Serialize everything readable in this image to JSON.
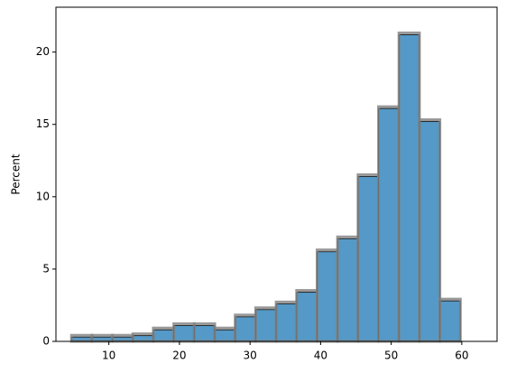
{
  "chart_data": {
    "type": "histogram",
    "y_label": "Percent",
    "bins": [
      4.7,
      7.6,
      10.5,
      13.4,
      16.3,
      19.2,
      22.1,
      25.0,
      27.9,
      30.8,
      33.7,
      36.6,
      39.5,
      42.4,
      45.3,
      48.2,
      51.1,
      54.0,
      56.9,
      59.8
    ],
    "values": [
      0.3,
      0.3,
      0.3,
      0.4,
      0.8,
      1.1,
      1.1,
      0.8,
      1.7,
      2.2,
      2.6,
      3.4,
      6.2,
      7.1,
      11.4,
      16.1,
      21.2,
      15.2,
      2.8
    ],
    "color": "#5499c7",
    "edge_color": "#808080",
    "xlim": [
      2.5,
      65
    ],
    "ylim": [
      0,
      23.1
    ],
    "xticks": [
      10,
      20,
      30,
      40,
      50,
      60
    ],
    "yticks": [
      0,
      5,
      10,
      15,
      20
    ]
  }
}
